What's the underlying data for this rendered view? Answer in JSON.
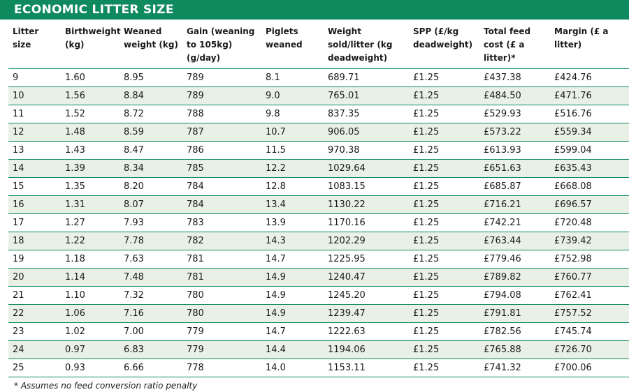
{
  "title": "ECONOMIC LITTER SIZE",
  "columns": [
    "Litter size",
    "Birthweight (kg)",
    "Weaned weight (kg)",
    "Gain (weaning to 105kg) (g/day)",
    "Piglets weaned",
    "Weight sold/litter (kg deadweight)",
    "SPP (£/kg deadweight)",
    "Total feed cost (£ a litter)*",
    "Margin (£ a litter)"
  ],
  "rows": [
    [
      "9",
      "1.60",
      "8.95",
      "789",
      "8.1",
      "689.71",
      "£1.25",
      "£437.38",
      "£424.76"
    ],
    [
      "10",
      "1.56",
      "8.84",
      "789",
      "9.0",
      "765.01",
      "£1.25",
      "£484.50",
      "£471.76"
    ],
    [
      "11",
      "1.52",
      "8.72",
      "788",
      "9.8",
      "837.35",
      "£1.25",
      "£529.93",
      "£516.76"
    ],
    [
      "12",
      "1.48",
      "8.59",
      "787",
      "10.7",
      "906.05",
      "£1.25",
      "£573.22",
      "£559.34"
    ],
    [
      "13",
      "1.43",
      "8.47",
      "786",
      "11.5",
      "970.38",
      "£1.25",
      "£613.93",
      "£599.04"
    ],
    [
      "14",
      "1.39",
      "8.34",
      "785",
      "12.2",
      "1029.64",
      "£1.25",
      "£651.63",
      "£635.43"
    ],
    [
      "15",
      "1.35",
      "8.20",
      "784",
      "12.8",
      "1083.15",
      "£1.25",
      "£685.87",
      "£668.08"
    ],
    [
      "16",
      "1.31",
      "8.07",
      "784",
      "13.4",
      "1130.22",
      "£1.25",
      "£716.21",
      "£696.57"
    ],
    [
      "17",
      "1.27",
      "7.93",
      "783",
      "13.9",
      "1170.16",
      "£1.25",
      "£742.21",
      "£720.48"
    ],
    [
      "18",
      "1.22",
      "7.78",
      "782",
      "14.3",
      "1202.29",
      "£1.25",
      "£763.44",
      "£739.42"
    ],
    [
      "19",
      "1.18",
      "7.63",
      "781",
      "14.7",
      "1225.95",
      "£1.25",
      "£779.46",
      "£752.98"
    ],
    [
      "20",
      "1.14",
      "7.48",
      "781",
      "14.9",
      "1240.47",
      "£1.25",
      "£789.82",
      "£760.77"
    ],
    [
      "21",
      "1.10",
      "7.32",
      "780",
      "14.9",
      "1245.20",
      "£1.25",
      "£794.08",
      "£762.41"
    ],
    [
      "22",
      "1.06",
      "7.16",
      "780",
      "14.9",
      "1239.47",
      "£1.25",
      "£791.81",
      "£757.52"
    ],
    [
      "23",
      "1.02",
      "7.00",
      "779",
      "14.7",
      "1222.63",
      "£1.25",
      "£782.56",
      "£745.74"
    ],
    [
      "24",
      "0.97",
      "6.83",
      "779",
      "14.4",
      "1194.06",
      "£1.25",
      "£765.88",
      "£726.70"
    ],
    [
      "25",
      "0.93",
      "6.66",
      "778",
      "14.0",
      "1153.11",
      "£1.25",
      "£741.32",
      "£700.06"
    ]
  ],
  "footnote": "* Assumes no feed conversion ratio penalty",
  "colors": {
    "accent": "#0f8a5f",
    "stripe": "#e9f1e6",
    "text": "#1a1a1a"
  }
}
